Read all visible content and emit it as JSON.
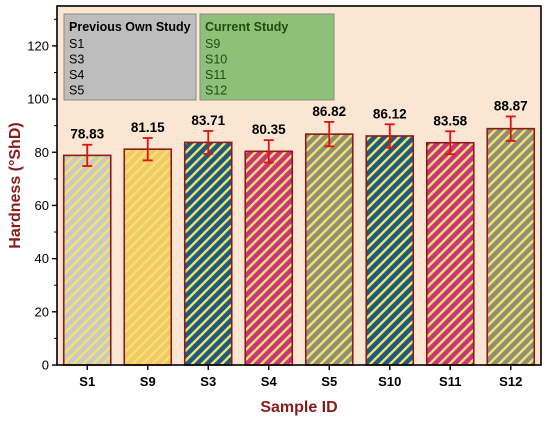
{
  "colors": {
    "plot_background": "#fbe6d3",
    "bar_border": "#8b1a1a",
    "error_bar": "#e01010",
    "axis_title": "#8b1a1a",
    "stripe": "#f4e36a"
  },
  "legend": {
    "previous": {
      "title": "Previous Own Study",
      "items": [
        "S1",
        "S3",
        "S4",
        "S5"
      ],
      "fill": "#bdbdbd",
      "title_color": "#000000"
    },
    "current": {
      "title": "Current Study",
      "items": [
        "S9",
        "S10",
        "S11",
        "S12"
      ],
      "fill": "#8fc07a",
      "title_color": "#1e4d0f"
    }
  },
  "chart_data": {
    "type": "bar",
    "categories": [
      "S1",
      "S9",
      "S3",
      "S4",
      "S5",
      "S10",
      "S11",
      "S12"
    ],
    "values": [
      78.83,
      81.15,
      83.71,
      80.35,
      86.82,
      86.12,
      83.58,
      88.87
    ],
    "value_labels": [
      "78.83",
      "81.15",
      "83.71",
      "80.35",
      "86.82",
      "86.12",
      "83.58",
      "88.87"
    ],
    "errors": [
      4.0,
      4.2,
      4.3,
      4.2,
      4.6,
      4.4,
      4.3,
      4.6
    ],
    "bar_base_colors": [
      "#c9c9c9",
      "#f2c86a",
      "#1c5a80",
      "#c8347e",
      "#8f8f78",
      "#1c5a80",
      "#c8347e",
      "#8f8f78"
    ],
    "stripe_color": "#f4e36a",
    "xlabel": "Sample ID",
    "ylabel": "Hardness (°ShD)",
    "ylim": [
      0,
      135
    ],
    "yticks": [
      0,
      20,
      40,
      60,
      80,
      100,
      120
    ],
    "grid": false,
    "legend_position": "top-left"
  }
}
